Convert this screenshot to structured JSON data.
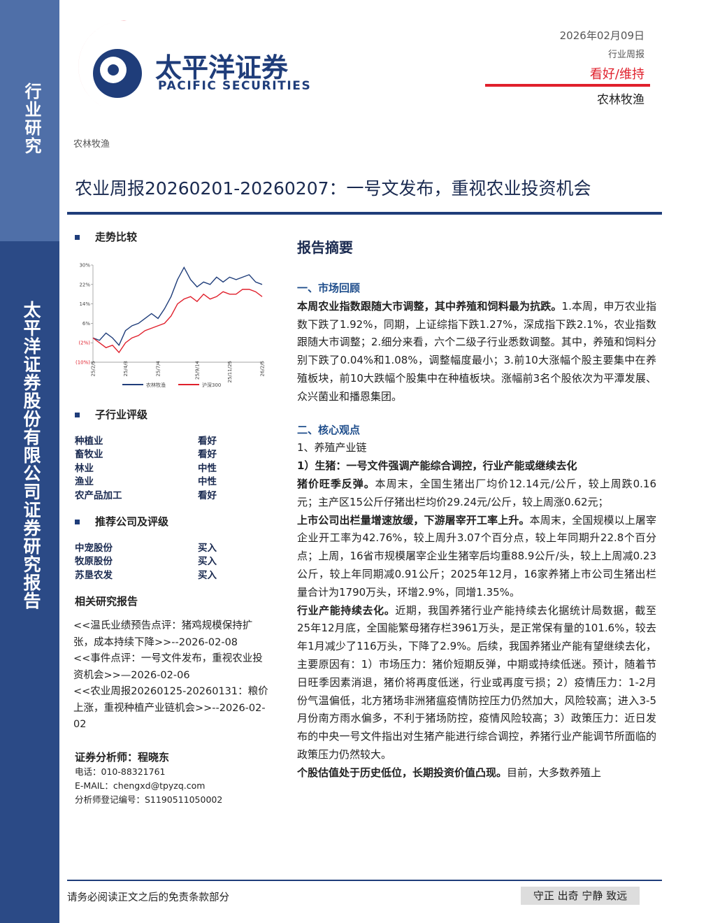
{
  "sidebar": {
    "top": "行业研究",
    "bottom": "太平洋证券股份有限公司证券研究报告"
  },
  "header": {
    "logo_name": "太平洋证券",
    "logo_en": "PACIFIC SECURITIES",
    "date": "2026年02月09日",
    "report_type": "行业周报",
    "rating": "看好/维持",
    "industry": "农林牧渔"
  },
  "tag": "农林牧渔",
  "title": "农业周报20260201-20260207：一号文发布，重视农业投资机会",
  "trend": {
    "heading": "走势比较",
    "chart_data": {
      "type": "line",
      "ylim": [
        -10,
        30
      ],
      "yticks": [
        {
          "value": 30,
          "label": "30%"
        },
        {
          "value": 22,
          "label": "22%"
        },
        {
          "value": 14,
          "label": "14%"
        },
        {
          "value": 6,
          "label": "6%"
        },
        {
          "value": -2,
          "label": "(2%)"
        },
        {
          "value": -10,
          "label": "(10%)"
        }
      ],
      "xlim": [
        0,
        26
      ],
      "xticks": [
        {
          "value": 0,
          "label": "25/2/5"
        },
        {
          "value": 5,
          "label": "25/4/3"
        },
        {
          "value": 10,
          "label": "25/7/4"
        },
        {
          "value": 16,
          "label": "25/9/14"
        },
        {
          "value": 21,
          "label": "25/11/25"
        },
        {
          "value": 26,
          "label": "26/2/5"
        }
      ],
      "series": [
        {
          "name": "农林牧渔",
          "color": "#1f3d7a",
          "values": [
            0,
            -1,
            2,
            0,
            -3,
            3,
            5,
            6,
            8,
            10,
            8,
            12,
            17,
            24,
            29,
            24,
            21,
            23,
            22,
            25,
            23,
            25,
            24,
            25,
            26,
            23,
            22
          ]
        },
        {
          "name": "沪深300",
          "color": "#e0202c",
          "values": [
            0,
            -2,
            -4,
            -3,
            -6,
            -2,
            0,
            1,
            3,
            4,
            5,
            6,
            9,
            14,
            16,
            17,
            15,
            18,
            16,
            17,
            19,
            18,
            18,
            20,
            20,
            19,
            17
          ]
        }
      ]
    }
  },
  "sub_ratings": {
    "heading": "子行业评级",
    "rows": [
      [
        "种植业",
        "看好"
      ],
      [
        "畜牧业",
        "看好"
      ],
      [
        "林业",
        "中性"
      ],
      [
        "渔业",
        "中性"
      ],
      [
        "农产品加工",
        "看好"
      ]
    ]
  },
  "companies": {
    "heading": "推荐公司及评级",
    "rows": [
      [
        "中宠股份",
        "买入"
      ],
      [
        "牧原股份",
        "买入"
      ],
      [
        "苏垦农发",
        "买入"
      ]
    ]
  },
  "related": {
    "heading": "相关研究报告",
    "items": [
      "<<温氏业绩预告点评：猪鸡规模保持扩张，成本持续下降>>--2026-02-08",
      "<<事件点评：一号文件发布，重视农业投资机会>>—2026-02-06",
      "<<农业周报20260125-20260131：粮价上涨，重视种植产业链机会>>--2026-02-02"
    ]
  },
  "analyst": {
    "name": "证券分析师：程晓东",
    "lines": [
      "电话：010-88321761",
      "E-MAIL：chengxd@tpyzq.com",
      "分析师登记编号：S1190511050002"
    ]
  },
  "summary": {
    "heading": "报告摘要",
    "blocks": [
      {
        "kind": "h",
        "text": "一、市场回顾"
      },
      {
        "kind": "p",
        "lead": "本周农业指数跟随大市调整，其中养殖和饲料最为抗跌。",
        "text": "1.本周，申万农业指数下跌了1.92%，同期，上证综指下跌1.27%，深成指下跌2.1%，农业指数跟随大市调整；2.细分来看，六个二级子行业悉数调整。其中，养殖和饲料分别下跌了0.04%和1.08%，调整幅度最小；3.前10大涨幅个股主要集中在养殖板块，前10大跌幅个股集中在种植板块。涨幅前3名个股依次为平潭发展、众兴菌业和播恩集团。"
      },
      {
        "kind": "h",
        "text": "二、核心观点"
      },
      {
        "kind": "t",
        "text": "1、养殖产业链"
      },
      {
        "kind": "b",
        "text": "1）生猪：一号文件强调产能综合调控，行业产能或继续去化"
      },
      {
        "kind": "p",
        "lead": "猪价旺季反弹。",
        "text": "本周末，全国生猪出厂均价12.14元/公斤，较上周跌0.16元；主产区15公斤仔猪出栏均价29.24元/公斤，较上周涨0.62元；"
      },
      {
        "kind": "p",
        "lead": "上市公司出栏量增速放缓，下游屠宰开工率上升。",
        "text": "本周末，全国规模以上屠宰企业开工率为42.76%，较上周升3.07个百分点，较上年同期升22.8个百分点；上周，16省市规模屠宰企业生猪宰后均重88.9公斤/头，较上上周减0.23公斤，较上年同期减0.91公斤；2025年12月，16家养猪上市公司生猪出栏量合计为1790万头，环增2.9%，同增1.35%。"
      },
      {
        "kind": "p",
        "lead": "行业产能持续去化。",
        "text": "近期，我国养猪行业产能持续去化据统计局数据，截至25年12月底，全国能繁母猪存栏3961万头，是正常保有量的101.6%，较去年1月减少了116万头，下降了2.9%。后续，我国养猪业产能有望继续去化，主要原因有：1）市场压力：猪价短期反弹，中期或持续低迷。预计，随着节日旺季因素消退，猪价将再度低迷，行业或再度亏损；2）疫情压力：1-2月份气温偏低，北方猪场非洲猪瘟疫情防控压力仍然加大，风险较高；进入3-5月份南方雨水偏多，不利于猪场防控，疫情风险较高；3）政策压力：近日发布的中央一号文件指出对生猪产能进行综合调控，养猪行业产能调节所面临的政策压力仍然较大。"
      },
      {
        "kind": "p",
        "lead": "个股估值处于历史低位，长期投资价值凸现。",
        "text": "目前，大多数养殖上"
      }
    ]
  },
  "footer": {
    "left": "请务必阅读正文之后的免责条款部分",
    "right": "守正 出奇 宁静 致远"
  }
}
